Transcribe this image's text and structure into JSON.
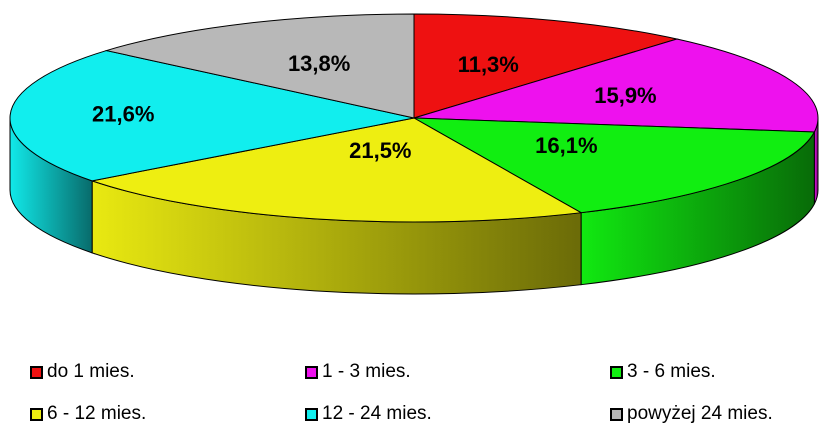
{
  "chart_data": {
    "type": "pie",
    "style": "3d",
    "categories": [
      "do 1 mies.",
      "1 - 3 mies.",
      "3 - 6 mies.",
      "6 - 12 mies.",
      "12 - 24 mies.",
      "powyżej 24 mies."
    ],
    "values": [
      11.3,
      15.9,
      16.1,
      21.5,
      21.6,
      13.8
    ],
    "data_labels": [
      "11,3%",
      "15,9%",
      "16,1%",
      "21,5%",
      "21,6%",
      "13,8%"
    ],
    "colors": [
      "#ee1111",
      "#ee11ee",
      "#11ee11",
      "#eeee11",
      "#11eeee",
      "#b8b8b8"
    ],
    "title": "",
    "legend_position": "bottom"
  }
}
